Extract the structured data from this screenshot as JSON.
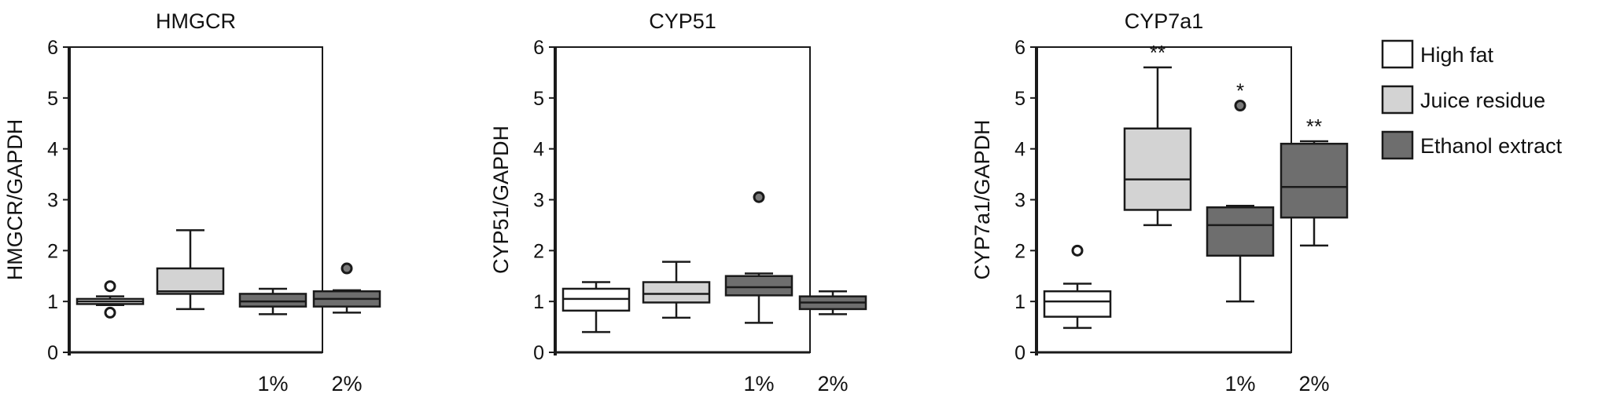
{
  "chart_data": [
    {
      "type": "box",
      "title": "HMGCR",
      "ylabel": "HMGCR/GAPDH",
      "ylim": [
        0,
        6
      ],
      "yticks": [
        0,
        1,
        2,
        3,
        4,
        5,
        6
      ],
      "xlabels": [
        "",
        "",
        "1%",
        "2%"
      ],
      "boxes": [
        {
          "group": "High fat",
          "min": 0.93,
          "q1": 0.95,
          "median": 1.0,
          "q3": 1.05,
          "max": 1.1,
          "outliers": [
            1.3,
            0.78
          ],
          "significance": ""
        },
        {
          "group": "Juice residue",
          "min": 0.85,
          "q1": 1.15,
          "median": 1.2,
          "q3": 1.65,
          "max": 2.4,
          "outliers": [],
          "significance": ""
        },
        {
          "group": "Ethanol extract",
          "min": 0.75,
          "q1": 0.9,
          "median": 1.0,
          "q3": 1.15,
          "max": 1.25,
          "outliers": [],
          "significance": ""
        },
        {
          "group": "Ethanol extract",
          "min": 0.78,
          "q1": 0.9,
          "median": 1.05,
          "q3": 1.2,
          "max": 1.22,
          "outliers": [
            1.65
          ],
          "significance": ""
        }
      ]
    },
    {
      "type": "box",
      "title": "CYP51",
      "ylabel": "CYP51/GAPDH",
      "ylim": [
        0,
        6
      ],
      "yticks": [
        0,
        1,
        2,
        3,
        4,
        5,
        6
      ],
      "xlabels": [
        "",
        "",
        "1%",
        "2%"
      ],
      "boxes": [
        {
          "group": "High fat",
          "min": 0.4,
          "q1": 0.82,
          "median": 1.05,
          "q3": 1.25,
          "max": 1.38,
          "outliers": [],
          "significance": ""
        },
        {
          "group": "Juice residue",
          "min": 0.68,
          "q1": 0.98,
          "median": 1.15,
          "q3": 1.38,
          "max": 1.78,
          "outliers": [],
          "significance": ""
        },
        {
          "group": "Ethanol extract",
          "min": 0.58,
          "q1": 1.12,
          "median": 1.28,
          "q3": 1.5,
          "max": 1.55,
          "outliers": [
            3.05
          ],
          "significance": ""
        },
        {
          "group": "Ethanol extract",
          "min": 0.75,
          "q1": 0.85,
          "median": 0.98,
          "q3": 1.1,
          "max": 1.2,
          "outliers": [],
          "significance": ""
        }
      ]
    },
    {
      "type": "box",
      "title": "CYP7a1",
      "ylabel": "CYP7a1/GAPDH",
      "ylim": [
        0,
        6
      ],
      "yticks": [
        0,
        1,
        2,
        3,
        4,
        5,
        6
      ],
      "xlabels": [
        "",
        "",
        "1%",
        "2%"
      ],
      "boxes": [
        {
          "group": "High fat",
          "min": 0.48,
          "q1": 0.7,
          "median": 1.0,
          "q3": 1.2,
          "max": 1.35,
          "outliers": [
            2.0
          ],
          "significance": ""
        },
        {
          "group": "Juice residue",
          "min": 2.5,
          "q1": 2.8,
          "median": 3.4,
          "q3": 4.4,
          "max": 5.6,
          "outliers": [],
          "significance": "**"
        },
        {
          "group": "Ethanol extract",
          "min": 1.0,
          "q1": 1.9,
          "median": 2.5,
          "q3": 2.85,
          "max": 2.88,
          "outliers": [
            4.85
          ],
          "significance": "*"
        },
        {
          "group": "Ethanol extract",
          "min": 2.1,
          "q1": 2.65,
          "median": 3.25,
          "q3": 4.1,
          "max": 4.15,
          "outliers": [],
          "significance": "**"
        }
      ]
    }
  ],
  "legend": {
    "position": "right",
    "items": [
      {
        "label": "High fat",
        "color": "#ffffff"
      },
      {
        "label": "Juice residue",
        "color": "#d3d3d3"
      },
      {
        "label": "Ethanol extract",
        "color": "#6e6e6e"
      }
    ]
  },
  "colors": {
    "High fat": "#ffffff",
    "Juice residue": "#d3d3d3",
    "Ethanol extract": "#6e6e6e",
    "stroke": "#1a1a1a"
  }
}
